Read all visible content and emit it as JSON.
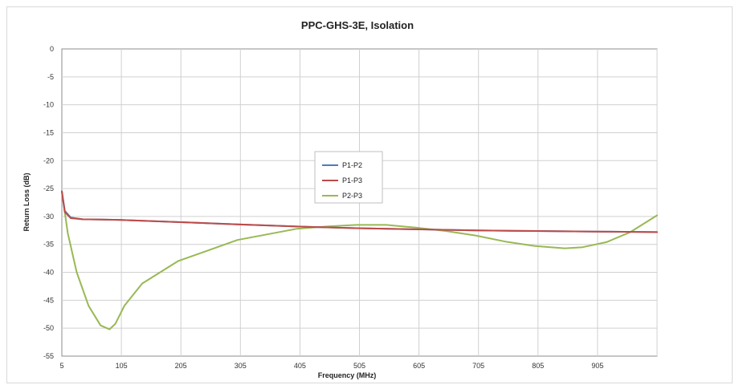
{
  "chart_data": {
    "type": "line",
    "title": "PPC-GHS-3E, Isolation",
    "xlabel": "Frequency (MHz)",
    "ylabel": "Return Loss (dB)",
    "xlim": [
      5,
      1005
    ],
    "ylim": [
      -55,
      0
    ],
    "x_ticks": [
      "5",
      "105",
      "205",
      "305",
      "405",
      "505",
      "605",
      "705",
      "805",
      "905"
    ],
    "x_tick_values": [
      5,
      105,
      205,
      305,
      405,
      505,
      605,
      705,
      805,
      905
    ],
    "y_ticks": [
      "0",
      "-5",
      "-10",
      "-15",
      "-20",
      "-25",
      "-30",
      "-35",
      "-40",
      "-45",
      "-50",
      "-55"
    ],
    "y_tick_values": [
      0,
      -5,
      -10,
      -15,
      -20,
      -25,
      -30,
      -35,
      -40,
      -45,
      -50,
      -55
    ],
    "grid": true,
    "legend_position": "center",
    "series": [
      {
        "name": "P1-P2",
        "color": "#4a7ebb",
        "x": [
          5,
          10,
          20,
          40,
          100,
          200,
          300,
          400,
          500,
          600,
          700,
          800,
          900,
          1005
        ],
        "y": [
          -25.5,
          -29,
          -30.2,
          -30.5,
          -30.6,
          -31,
          -31.4,
          -31.8,
          -32.1,
          -32.3,
          -32.5,
          -32.6,
          -32.7,
          -32.8
        ]
      },
      {
        "name": "P1-P3",
        "color": "#be4b48",
        "x": [
          5,
          10,
          20,
          40,
          100,
          200,
          300,
          400,
          500,
          600,
          700,
          800,
          900,
          1005
        ],
        "y": [
          -25.5,
          -29.2,
          -30.3,
          -30.5,
          -30.6,
          -31,
          -31.4,
          -31.8,
          -32.1,
          -32.3,
          -32.5,
          -32.6,
          -32.7,
          -32.8
        ]
      },
      {
        "name": "P2-P3",
        "color": "#98b954",
        "x": [
          5,
          15,
          30,
          50,
          70,
          85,
          95,
          110,
          140,
          200,
          300,
          400,
          450,
          500,
          550,
          600,
          650,
          700,
          750,
          800,
          850,
          880,
          920,
          960,
          1005
        ],
        "y": [
          -25.5,
          -33,
          -40,
          -46,
          -49.5,
          -50.2,
          -49.2,
          -46,
          -42,
          -38,
          -34.2,
          -32.2,
          -31.8,
          -31.5,
          -31.5,
          -32,
          -32.6,
          -33.4,
          -34.5,
          -35.3,
          -35.7,
          -35.5,
          -34.6,
          -32.8,
          -29.8
        ]
      }
    ]
  }
}
